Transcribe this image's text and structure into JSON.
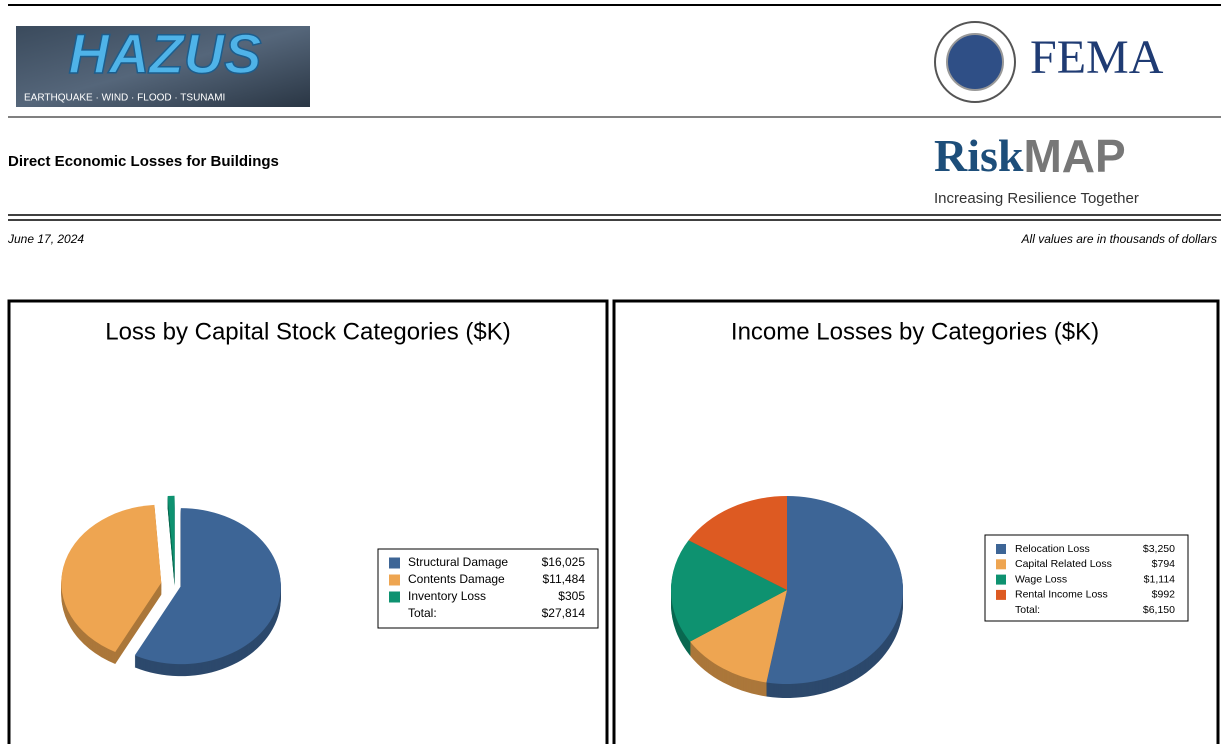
{
  "header": {
    "hazus": {
      "title": "HAZUS",
      "subtitle": "EARTHQUAKE · WIND · FLOOD · TSUNAMI"
    },
    "fema": "FEMA",
    "riskmap": {
      "risk": "Risk",
      "map": "MAP",
      "tagline": "Increasing Resilience Together"
    },
    "report_title": "Direct Economic Losses for Buildings",
    "date": "June 17, 2024",
    "units_note": "All values are in thousands of dollars"
  },
  "chart_data": [
    {
      "type": "pie",
      "title": "Loss by Capital Stock Categories ($K)",
      "categories": [
        "Structural Damage",
        "Contents Damage",
        "Inventory Loss"
      ],
      "values": [
        16025,
        11484,
        305
      ],
      "value_labels": [
        "$16,025",
        "$11,484",
        "$305"
      ],
      "colors": [
        "#3d6596",
        "#eea551",
        "#0e9270"
      ],
      "total": {
        "label": "Total:",
        "value": "$27,814"
      }
    },
    {
      "type": "pie",
      "title": "Income Losses by Categories ($K)",
      "categories": [
        "Relocation Loss",
        "Capital Related Loss",
        "Wage Loss",
        "Rental Income Loss"
      ],
      "values": [
        3250,
        794,
        1114,
        992
      ],
      "value_labels": [
        "$3,250",
        "$794",
        "$1,114",
        "$992"
      ],
      "colors": [
        "#3d6596",
        "#eea551",
        "#0e9270",
        "#dd5a22"
      ],
      "total": {
        "label": "Total:",
        "value": "$6,150"
      }
    }
  ]
}
